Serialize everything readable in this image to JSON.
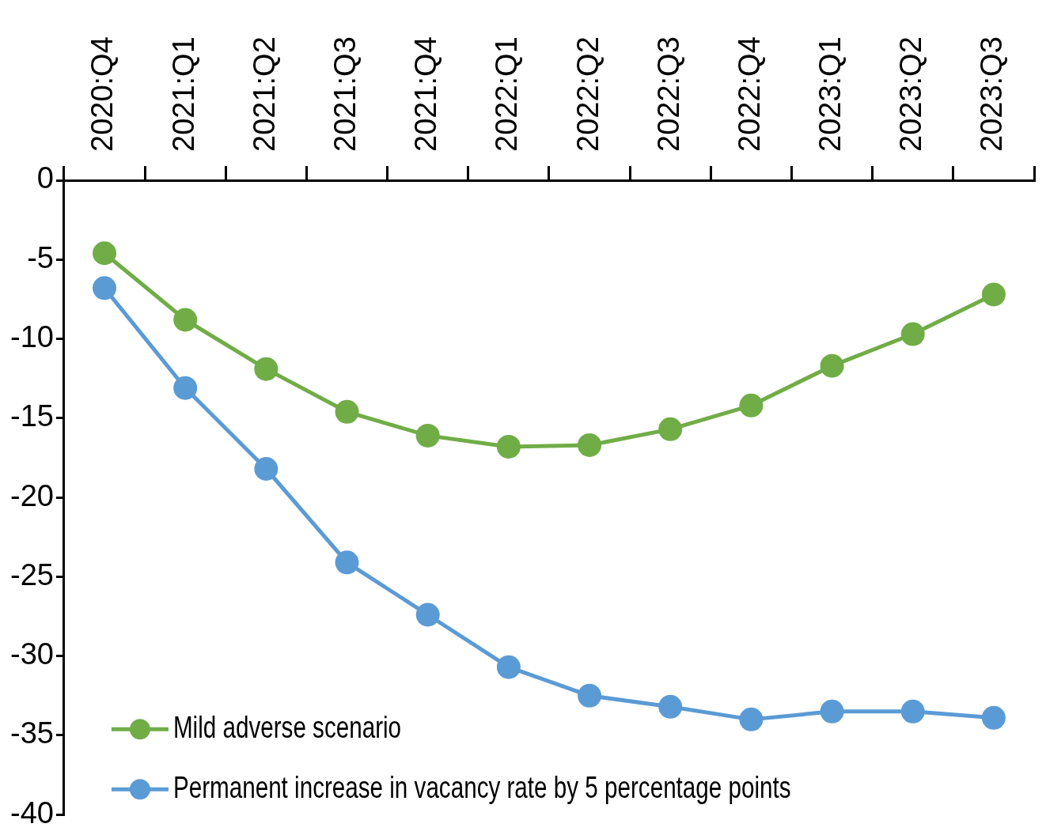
{
  "chart_data": {
    "type": "line",
    "categories": [
      "2020:Q4",
      "2021:Q1",
      "2021:Q2",
      "2021:Q3",
      "2021:Q4",
      "2022:Q1",
      "2022:Q2",
      "2022:Q3",
      "2022:Q4",
      "2023:Q1",
      "2023:Q2",
      "2023:Q3"
    ],
    "series": [
      {
        "name": "Mild adverse scenario",
        "color": "#70ad47",
        "values": [
          -4.6,
          -8.8,
          -11.9,
          -14.6,
          -16.1,
          -16.8,
          -16.7,
          -15.7,
          -14.2,
          -11.7,
          -9.7,
          -7.2
        ]
      },
      {
        "name": "Permanent increase in vacancy rate by 5 percentage points",
        "color": "#5b9bd5",
        "values": [
          -6.8,
          -13.1,
          -18.2,
          -24.1,
          -27.4,
          -30.7,
          -32.5,
          -33.2,
          -34.0,
          -33.5,
          -33.5,
          -33.9
        ]
      }
    ],
    "ylim": [
      -40,
      0
    ],
    "yticks": [
      0,
      -5,
      -10,
      -15,
      -20,
      -25,
      -30,
      -35,
      -40
    ],
    "grid": false,
    "legend": "bottom left",
    "marker": "circle",
    "line_style": "solid"
  }
}
